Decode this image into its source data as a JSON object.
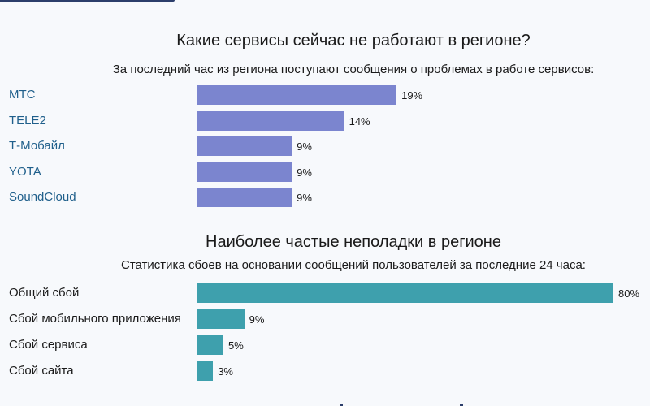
{
  "chart_data": [
    {
      "type": "bar",
      "orientation": "horizontal",
      "title": "Какие сервисы сейчас не работают в регионе?",
      "subtitle": "За последний час из региона поступают сообщения о проблемах в работе сервисов:",
      "categories": [
        "МТС",
        "TELE2",
        "Т-Мобайл",
        "YOTA",
        "SoundCloud"
      ],
      "values": [
        19,
        14,
        9,
        9,
        9
      ],
      "value_labels": [
        "19%",
        "14%",
        "9%",
        "9%",
        "9%"
      ],
      "unit": "%",
      "bar_color": "#7b85cf",
      "label_color": "#1f5f8b",
      "labels_are_links": true
    },
    {
      "type": "bar",
      "orientation": "horizontal",
      "title": "Наиболее частые неполадки в регионе",
      "subtitle": "Статистика сбоев на основании сообщений пользователей за последние 24 часа:",
      "categories": [
        "Общий сбой",
        "Сбой мобильного приложения",
        "Сбой сервиса",
        "Сбой сайта"
      ],
      "values": [
        80,
        9,
        5,
        3
      ],
      "value_labels": [
        "80%",
        "9%",
        "5%",
        "3%"
      ],
      "unit": "%",
      "bar_color": "#3ea0ad",
      "label_color": "#1a1a1a",
      "labels_are_links": false
    }
  ]
}
